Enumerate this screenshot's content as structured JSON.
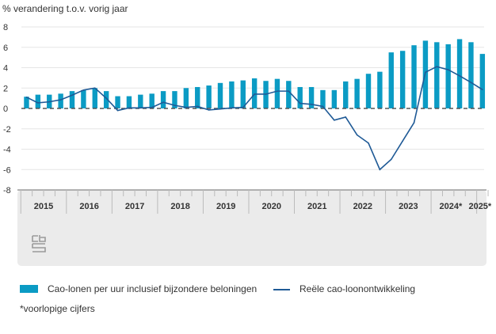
{
  "chart_data": {
    "type": "bar+line",
    "ylabel": "% verandering t.o.v. vorig jaar",
    "ylim": [
      -8,
      8
    ],
    "yticks": [
      8,
      6,
      4,
      2,
      0,
      -2,
      -4,
      -6,
      -8
    ],
    "grid": true,
    "year_labels": [
      "2015",
      "2016",
      "2017",
      "2018",
      "2019",
      "2020",
      "2021",
      "2022",
      "2023",
      "2024*",
      "2025*"
    ],
    "x": [
      "2015Q1",
      "2015Q2",
      "2015Q3",
      "2015Q4",
      "2016Q1",
      "2016Q2",
      "2016Q3",
      "2016Q4",
      "2017Q1",
      "2017Q2",
      "2017Q3",
      "2017Q4",
      "2018Q1",
      "2018Q2",
      "2018Q3",
      "2018Q4",
      "2019Q1",
      "2019Q2",
      "2019Q3",
      "2019Q4",
      "2020Q1",
      "2020Q2",
      "2020Q3",
      "2020Q4",
      "2021Q1",
      "2021Q2",
      "2021Q3",
      "2021Q4",
      "2022Q1",
      "2022Q2",
      "2022Q3",
      "2022Q4",
      "2023Q1",
      "2023Q2",
      "2023Q3",
      "2023Q4",
      "2024Q1",
      "2024Q2",
      "2024Q3",
      "2024Q4",
      "2025Q1"
    ],
    "series": [
      {
        "name": "Cao-lonen per uur inclusief bijzondere beloningen",
        "kind": "bar",
        "color": "#0b9bc4",
        "values": [
          1.15,
          1.35,
          1.35,
          1.45,
          1.7,
          1.8,
          2.0,
          1.7,
          1.2,
          1.2,
          1.35,
          1.45,
          1.7,
          1.7,
          2.0,
          2.1,
          2.25,
          2.5,
          2.65,
          2.75,
          2.95,
          2.7,
          2.9,
          2.7,
          2.1,
          2.1,
          1.8,
          1.8,
          2.65,
          2.9,
          3.4,
          3.6,
          5.5,
          5.65,
          6.2,
          6.65,
          6.5,
          6.3,
          6.8,
          6.5,
          5.35
        ]
      },
      {
        "name": "Reële cao-loonontwikkeling",
        "kind": "line",
        "color": "#1f5a96",
        "values": [
          1.1,
          0.55,
          0.65,
          0.85,
          1.3,
          1.8,
          2.0,
          1.0,
          -0.2,
          0.05,
          0.05,
          0.1,
          0.6,
          0.3,
          0.1,
          0.2,
          -0.15,
          -0.05,
          0.05,
          0.1,
          1.4,
          1.4,
          1.7,
          1.7,
          0.5,
          0.4,
          0.2,
          -1.15,
          -0.85,
          -2.6,
          -3.4,
          -6.0,
          -5.0,
          -3.2,
          -1.4,
          3.55,
          4.1,
          3.8,
          3.2,
          2.55,
          1.85
        ]
      }
    ],
    "legend_position": "bottom",
    "footnote": "*voorlopige cijfers"
  },
  "legend": {
    "bar_label": "Cao-lonen per uur inclusief bijzondere beloningen",
    "line_label": "Reële cao-loonontwikkeling"
  },
  "footnote": "*voorlopige cijfers",
  "logo_text": "cbs"
}
